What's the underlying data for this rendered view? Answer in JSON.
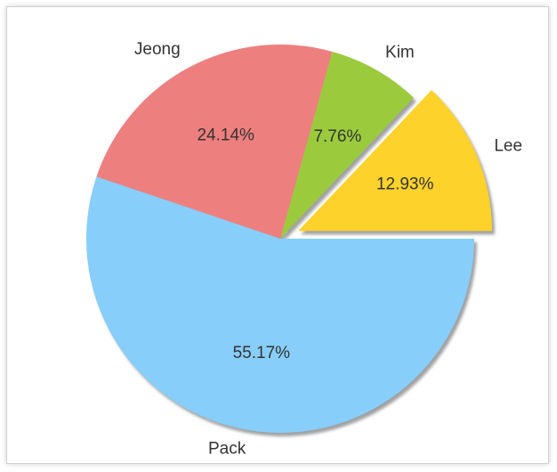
{
  "chart_data": {
    "type": "pie",
    "title": "",
    "series": [
      {
        "name": "Lee",
        "value": 12.93,
        "label": "12.93%",
        "color": "#fcd22b",
        "explode": true
      },
      {
        "name": "Kim",
        "value": 7.76,
        "label": "7.76%",
        "color": "#9bcb3c",
        "explode": false
      },
      {
        "name": "Jeong",
        "value": 24.14,
        "label": "24.14%",
        "color": "#ee7f7f",
        "explode": false
      },
      {
        "name": "Pack",
        "value": 55.17,
        "label": "55.17%",
        "color": "#87cefa",
        "explode": false
      }
    ],
    "start_angle_deg": 0,
    "direction": "counterclockwise",
    "shadow": true
  }
}
